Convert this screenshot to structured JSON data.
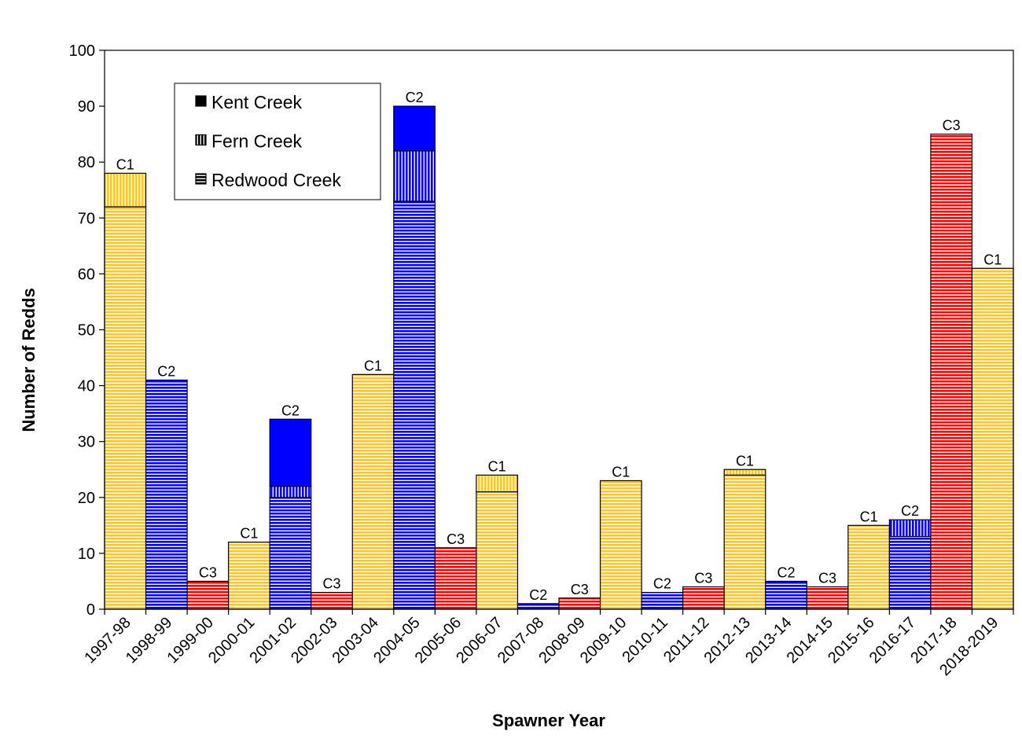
{
  "chart_data": {
    "type": "bar",
    "stacked": true,
    "xlabel": "Spawner Year",
    "ylabel": "Number of Redds",
    "ylim": [
      0,
      100
    ],
    "yticks": [
      0,
      10,
      20,
      30,
      40,
      50,
      60,
      70,
      80,
      90,
      100
    ],
    "grid": false,
    "legend": {
      "placement": "top-left",
      "entries": [
        {
          "name": "Kent Creek",
          "fill": "solid"
        },
        {
          "name": "Fern Creek",
          "fill": "vertical-stripes"
        },
        {
          "name": "Redwood Creek",
          "fill": "horizontal-stripes"
        }
      ]
    },
    "group_colors": {
      "C1": "#f7c631",
      "C2": "#0000ff",
      "C3": "#ff0000"
    },
    "categories": [
      "1997-98",
      "1998-99",
      "1999-00",
      "2000-01",
      "2001-02",
      "2002-03",
      "2003-04",
      "2004-05",
      "2005-06",
      "2006-07",
      "2007-08",
      "2008-09",
      "2009-10",
      "2010-11",
      "2011-12",
      "2012-13",
      "2013-14",
      "2014-15",
      "2015-16",
      "2016-17",
      "2017-18",
      "2018-2019"
    ],
    "group_labels": [
      "C1",
      "C2",
      "C3",
      "C1",
      "C2",
      "C3",
      "C1",
      "C2",
      "C3",
      "C1",
      "C2",
      "C3",
      "C1",
      "C2",
      "C3",
      "C1",
      "C2",
      "C3",
      "C1",
      "C2",
      "C3",
      "C1"
    ],
    "series": [
      {
        "name": "Redwood Creek",
        "values": [
          72,
          41,
          5,
          12,
          20,
          3,
          42,
          73,
          11,
          21,
          1,
          2,
          23,
          3,
          4,
          24,
          5,
          4,
          15,
          13,
          85,
          61
        ]
      },
      {
        "name": "Fern Creek",
        "values": [
          6,
          0,
          0,
          0,
          2,
          0,
          0,
          9,
          0,
          3,
          0,
          0,
          0,
          0,
          0,
          1,
          0,
          0,
          0,
          3,
          0,
          0
        ]
      },
      {
        "name": "Kent Creek",
        "values": [
          0,
          0,
          0,
          0,
          12,
          0,
          0,
          8,
          0,
          0,
          0,
          0,
          0,
          0,
          0,
          0,
          0,
          0,
          0,
          0,
          0,
          0
        ]
      }
    ]
  }
}
